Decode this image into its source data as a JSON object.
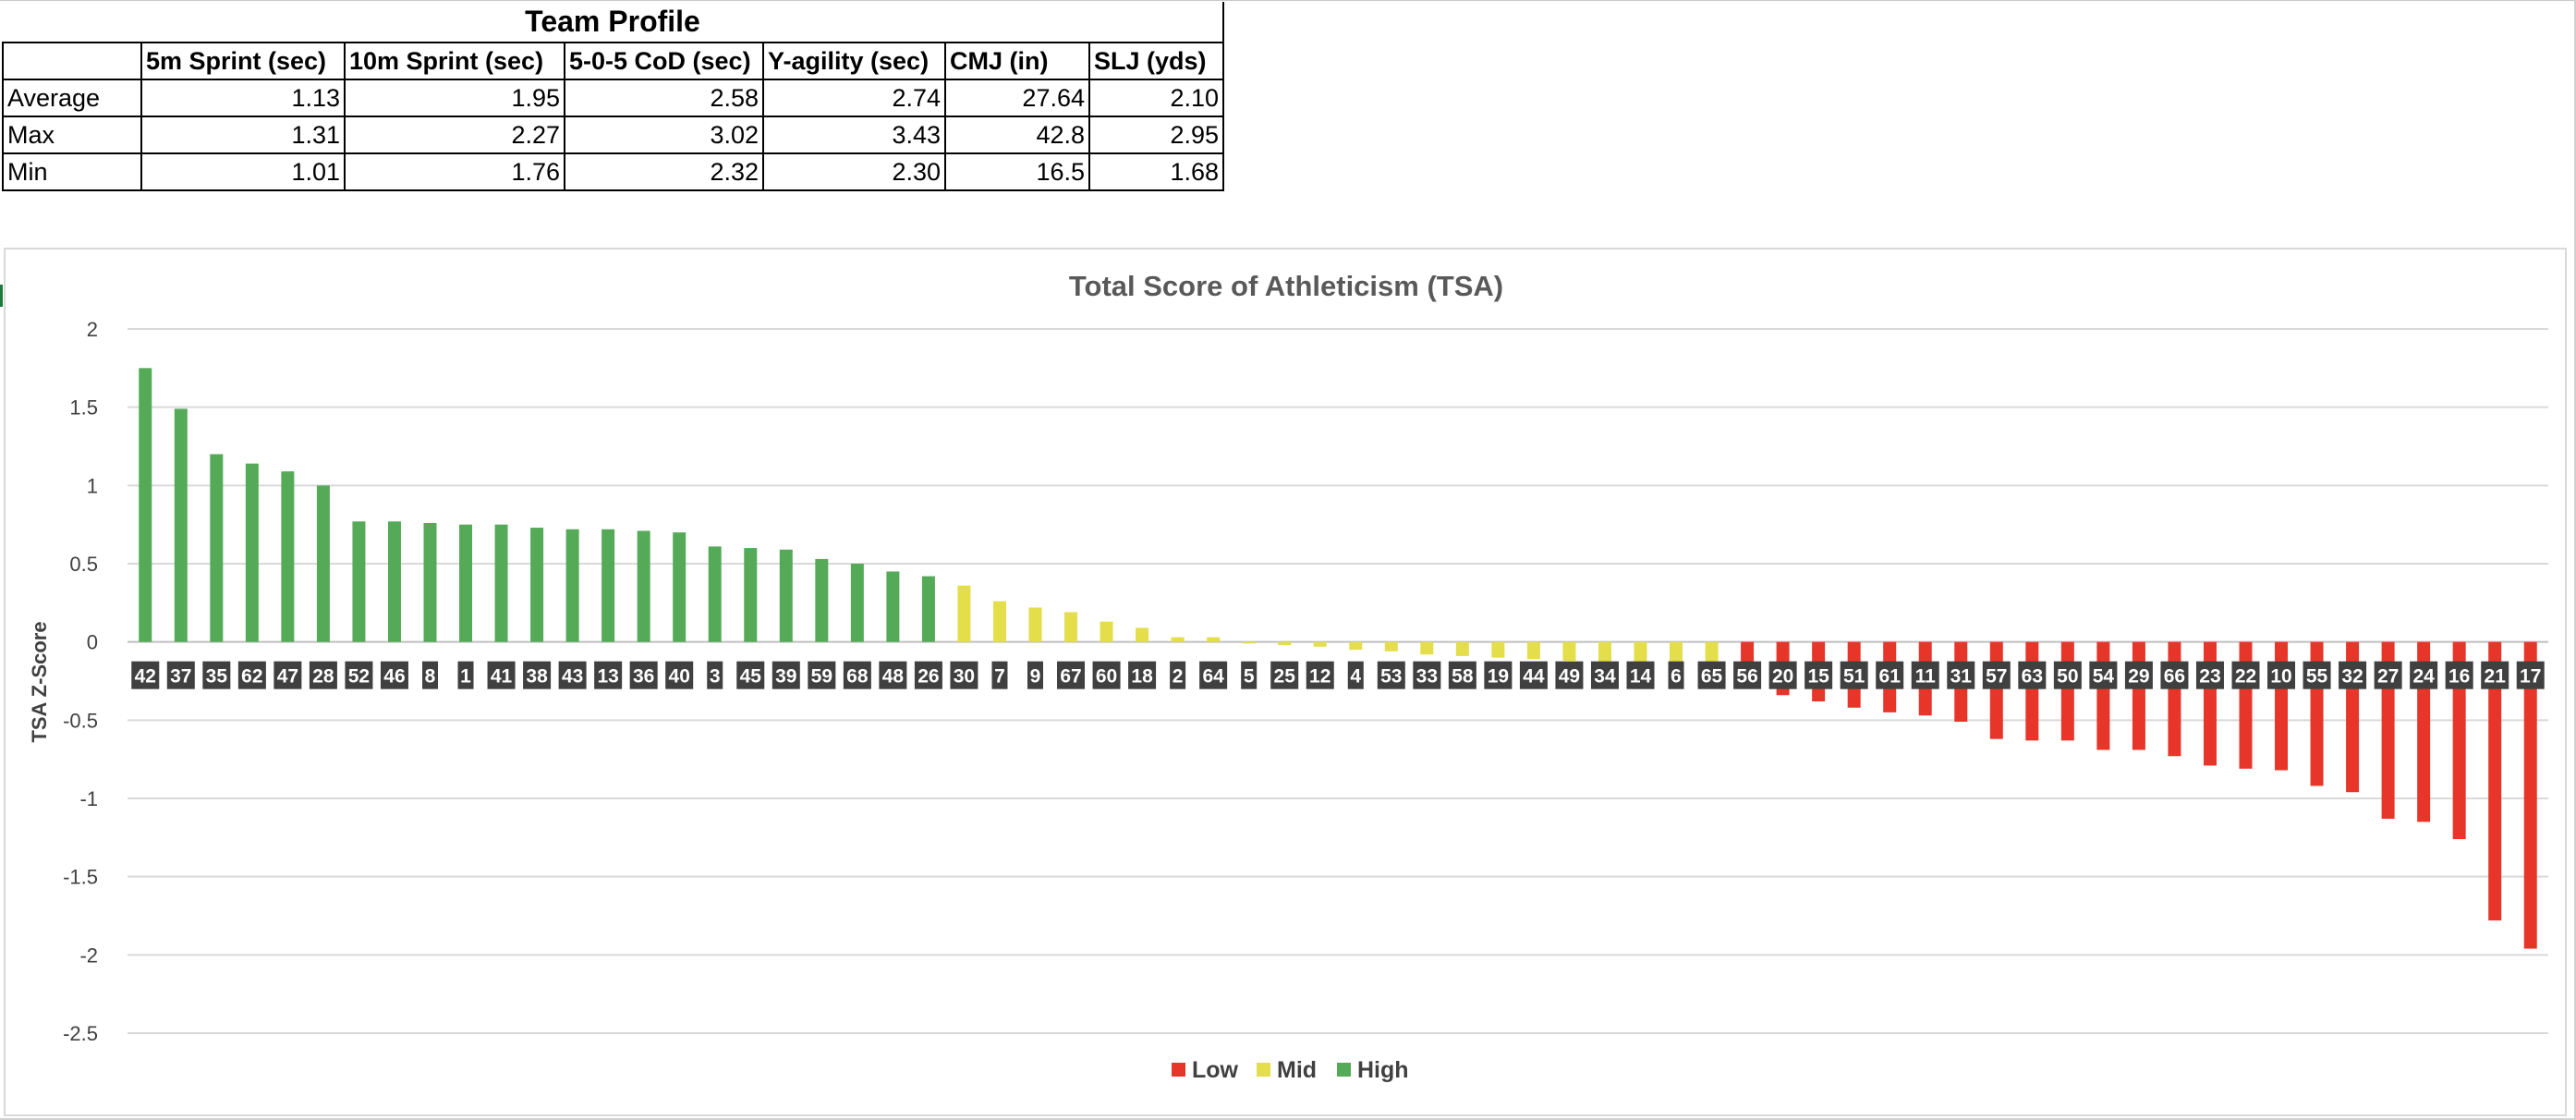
{
  "table": {
    "title": "Team Profile",
    "headers": [
      "",
      "5m Sprint (sec)",
      "10m Sprint (sec)",
      "5-0-5 CoD (sec)",
      "Y-agility (sec)",
      "CMJ (in)",
      "SLJ (yds)"
    ],
    "rows": [
      {
        "label": "Average",
        "values": [
          "1.13",
          "1.95",
          "2.58",
          "2.74",
          "27.64",
          "2.10"
        ]
      },
      {
        "label": "Max",
        "values": [
          "1.31",
          "2.27",
          "3.02",
          "3.43",
          "42.8",
          "2.95"
        ]
      },
      {
        "label": "Min",
        "values": [
          "1.01",
          "1.76",
          "2.32",
          "2.30",
          "16.5",
          "1.68"
        ]
      }
    ]
  },
  "chart_data": {
    "type": "bar",
    "title": "Total Score of Athleticism (TSA)",
    "xlabel": "",
    "ylabel": "TSA Z-Score",
    "ylim": [
      -2.5,
      2
    ],
    "yticks": [
      "2",
      "1.5",
      "1",
      "0.5",
      "0",
      "-0.5",
      "-1",
      "-1.5",
      "-2",
      "-2.5"
    ],
    "grid": true,
    "legend_position": "bottom",
    "legend": [
      {
        "name": "Low",
        "color": "#e8352a"
      },
      {
        "name": "Mid",
        "color": "#e3de4a"
      },
      {
        "name": "High",
        "color": "#55aa58"
      }
    ],
    "categories": [
      "42",
      "37",
      "35",
      "62",
      "47",
      "28",
      "52",
      "46",
      "8",
      "1",
      "41",
      "38",
      "43",
      "13",
      "36",
      "40",
      "3",
      "45",
      "39",
      "59",
      "68",
      "48",
      "26",
      "30",
      "7",
      "9",
      "67",
      "60",
      "18",
      "2",
      "64",
      "5",
      "25",
      "12",
      "4",
      "53",
      "33",
      "58",
      "19",
      "44",
      "49",
      "34",
      "14",
      "6",
      "65",
      "56",
      "20",
      "15",
      "51",
      "61",
      "11",
      "31",
      "57",
      "63",
      "50",
      "54",
      "29",
      "66",
      "23",
      "22",
      "10",
      "55",
      "32",
      "27",
      "24",
      "16",
      "21",
      "17"
    ],
    "values": [
      1.75,
      1.49,
      1.2,
      1.14,
      1.09,
      1.0,
      0.77,
      0.77,
      0.76,
      0.75,
      0.75,
      0.73,
      0.72,
      0.72,
      0.71,
      0.7,
      0.61,
      0.6,
      0.59,
      0.53,
      0.5,
      0.45,
      0.42,
      0.36,
      0.26,
      0.22,
      0.19,
      0.13,
      0.09,
      0.03,
      0.03,
      -0.01,
      -0.02,
      -0.03,
      -0.05,
      -0.06,
      -0.08,
      -0.09,
      -0.1,
      -0.11,
      -0.12,
      -0.13,
      -0.13,
      -0.13,
      -0.14,
      -0.29,
      -0.34,
      -0.38,
      -0.42,
      -0.45,
      -0.47,
      -0.51,
      -0.62,
      -0.63,
      -0.63,
      -0.69,
      -0.69,
      -0.73,
      -0.79,
      -0.81,
      -0.82,
      -0.92,
      -0.96,
      -1.13,
      -1.15,
      -1.26,
      -1.78,
      -1.96
    ],
    "groups": [
      "High",
      "High",
      "High",
      "High",
      "High",
      "High",
      "High",
      "High",
      "High",
      "High",
      "High",
      "High",
      "High",
      "High",
      "High",
      "High",
      "High",
      "High",
      "High",
      "High",
      "High",
      "High",
      "High",
      "Mid",
      "Mid",
      "Mid",
      "Mid",
      "Mid",
      "Mid",
      "Mid",
      "Mid",
      "Mid",
      "Mid",
      "Mid",
      "Mid",
      "Mid",
      "Mid",
      "Mid",
      "Mid",
      "Mid",
      "Mid",
      "Mid",
      "Mid",
      "Mid",
      "Mid",
      "Low",
      "Low",
      "Low",
      "Low",
      "Low",
      "Low",
      "Low",
      "Low",
      "Low",
      "Low",
      "Low",
      "Low",
      "Low",
      "Low",
      "Low",
      "Low",
      "Low",
      "Low",
      "Low",
      "Low",
      "Low",
      "Low",
      "Low"
    ]
  }
}
